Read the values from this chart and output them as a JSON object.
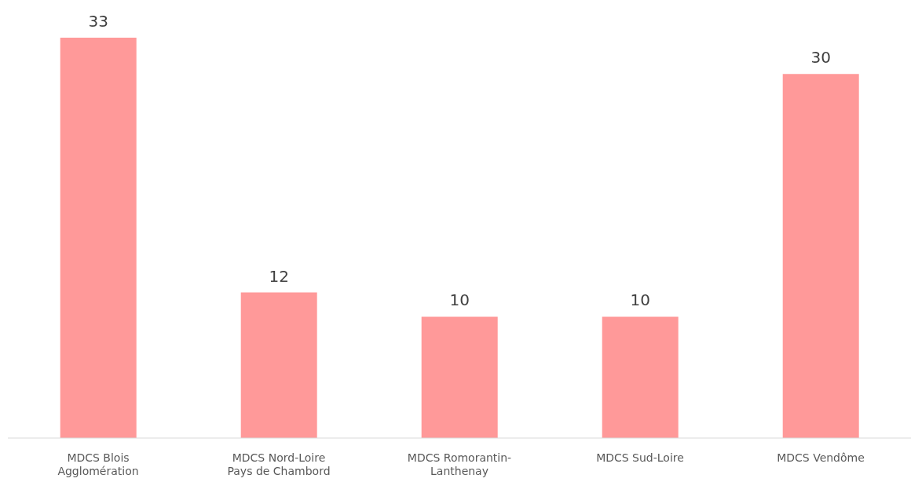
{
  "chart_data": {
    "type": "bar",
    "categories": [
      "MDCS Blois Agglomération",
      "MDCS Nord-Loire Pays de Chambord",
      "MDCS Romorantin-Lanthenay",
      "MDCS Sud-Loire",
      "MDCS Vendôme"
    ],
    "values": [
      33,
      12,
      10,
      10,
      30
    ],
    "color": "#ff9999",
    "data_labels": true
  }
}
